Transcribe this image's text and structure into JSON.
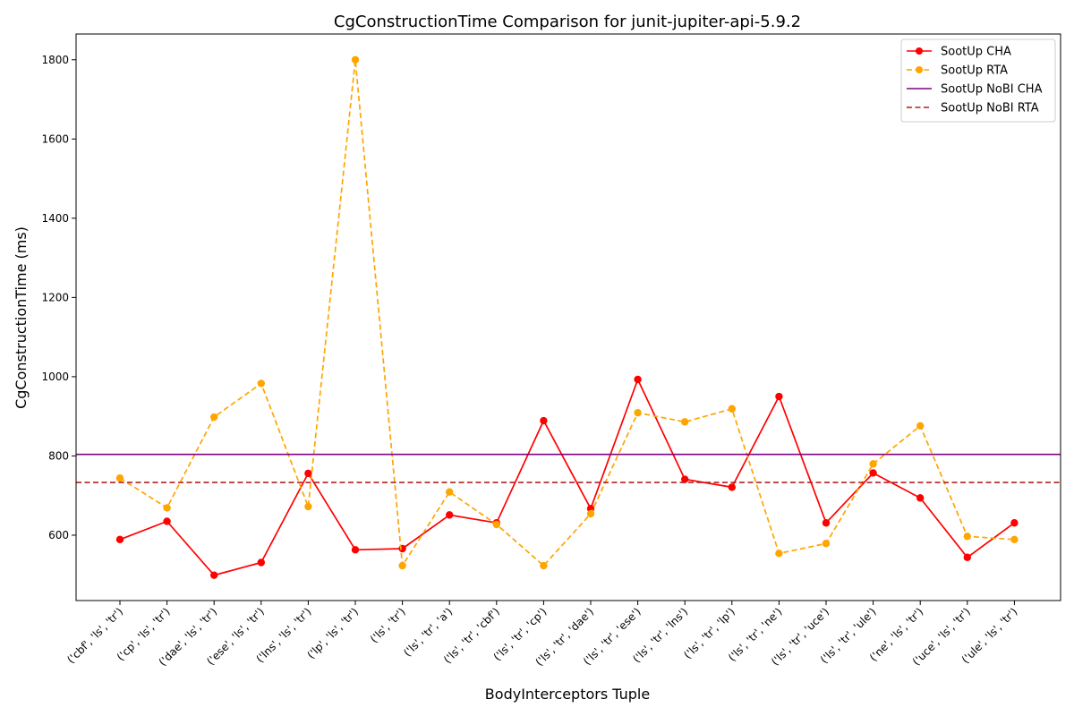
{
  "chart_data": {
    "type": "line",
    "title": "CgConstructionTime Comparison for junit-jupiter-api-5.9.2",
    "xlabel": "BodyInterceptors Tuple",
    "ylabel": "CgConstructionTime (ms)",
    "ylim": [
      435,
      1865
    ],
    "yticks": [
      600,
      800,
      1000,
      1200,
      1400,
      1600,
      1800
    ],
    "grid": false,
    "legend_position": "top-right",
    "categories": [
      "('cbf', 'ls', 'tr')",
      "('cp', 'ls', 'tr')",
      "('dae', 'ls', 'tr')",
      "('ese', 'ls', 'tr')",
      "('lns', 'ls', 'tr')",
      "('lp', 'ls', 'tr')",
      "('ls', 'tr')",
      "('ls', 'tr', 'a')",
      "('ls', 'tr', 'cbf')",
      "('ls', 'tr', 'cp')",
      "('ls', 'tr', 'dae')",
      "('ls', 'tr', 'ese')",
      "('ls', 'tr', 'lns')",
      "('ls', 'tr', 'lp')",
      "('ls', 'tr', 'ne')",
      "('ls', 'tr', 'uce')",
      "('ls', 'tr', 'ule')",
      "('ne', 'ls', 'tr')",
      "('uce', 'ls', 'tr')",
      "('ule', 'ls', 'tr')"
    ],
    "series": [
      {
        "name": "SootUp CHA",
        "kind": "line-markers",
        "color": "#ff0000",
        "dashed": false,
        "values": [
          589,
          635,
          499,
          531,
          756,
          563,
          566,
          651,
          631,
          889,
          667,
          993,
          741,
          721,
          950,
          631,
          757,
          694,
          544,
          631
        ]
      },
      {
        "name": "SootUp RTA",
        "kind": "line-markers",
        "color": "#ffa500",
        "dashed": true,
        "values": [
          744,
          669,
          898,
          983,
          672,
          1800,
          523,
          709,
          627,
          523,
          654,
          909,
          886,
          919,
          554,
          579,
          780,
          876,
          597,
          589
        ]
      },
      {
        "name": "SootUp NoBI CHA",
        "kind": "hline",
        "color": "#800080",
        "dashed": false,
        "value": 804
      },
      {
        "name": "SootUp NoBI RTA",
        "kind": "hline",
        "color": "#b22222",
        "dashed": true,
        "value": 733
      }
    ]
  }
}
